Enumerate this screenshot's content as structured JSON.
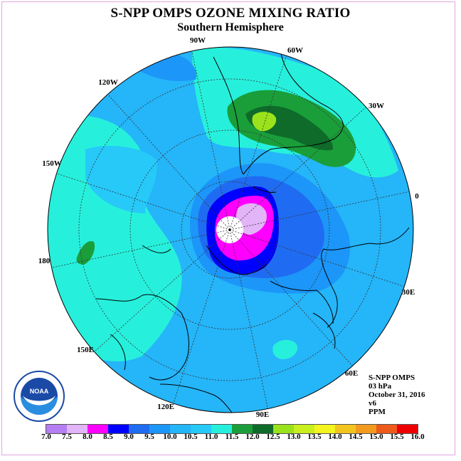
{
  "title": "S-NPP OMPS OZONE MIXING RATIO",
  "subtitle": "Southern Hemisphere",
  "info": {
    "instrument": "S-NPP OMPS",
    "level": "03 hPa",
    "date": "October 31, 2016",
    "version": "v6",
    "units": "PPM"
  },
  "longitude_labels": [
    "90W",
    "60W",
    "30W",
    "0",
    "30E",
    "60E",
    "90E",
    "120E",
    "150E",
    "180",
    "150W",
    "120W"
  ],
  "logo_text": "NOAA",
  "colorbar": {
    "ticks": [
      "7.0",
      "7.5",
      "8.0",
      "8.5",
      "9.0",
      "9.5",
      "10.0",
      "10.5",
      "11.0",
      "11.5",
      "12.0",
      "12.5",
      "13.0",
      "13.5",
      "14.0",
      "14.5",
      "15.0",
      "15.5",
      "16.0"
    ],
    "colors": [
      "#b57ef2",
      "#e2b4f8",
      "#ff00ff",
      "#0000ff",
      "#1f6cf2",
      "#1c96f8",
      "#25b5f9",
      "#26c9f8",
      "#26f0dc",
      "#1a9e3a",
      "#0e6b2a",
      "#9ae21c",
      "#c9ef1e",
      "#f4f41e",
      "#f2c41e",
      "#f29a1e",
      "#ee5a1a",
      "#ee0000",
      "#7c4a2a"
    ]
  }
}
